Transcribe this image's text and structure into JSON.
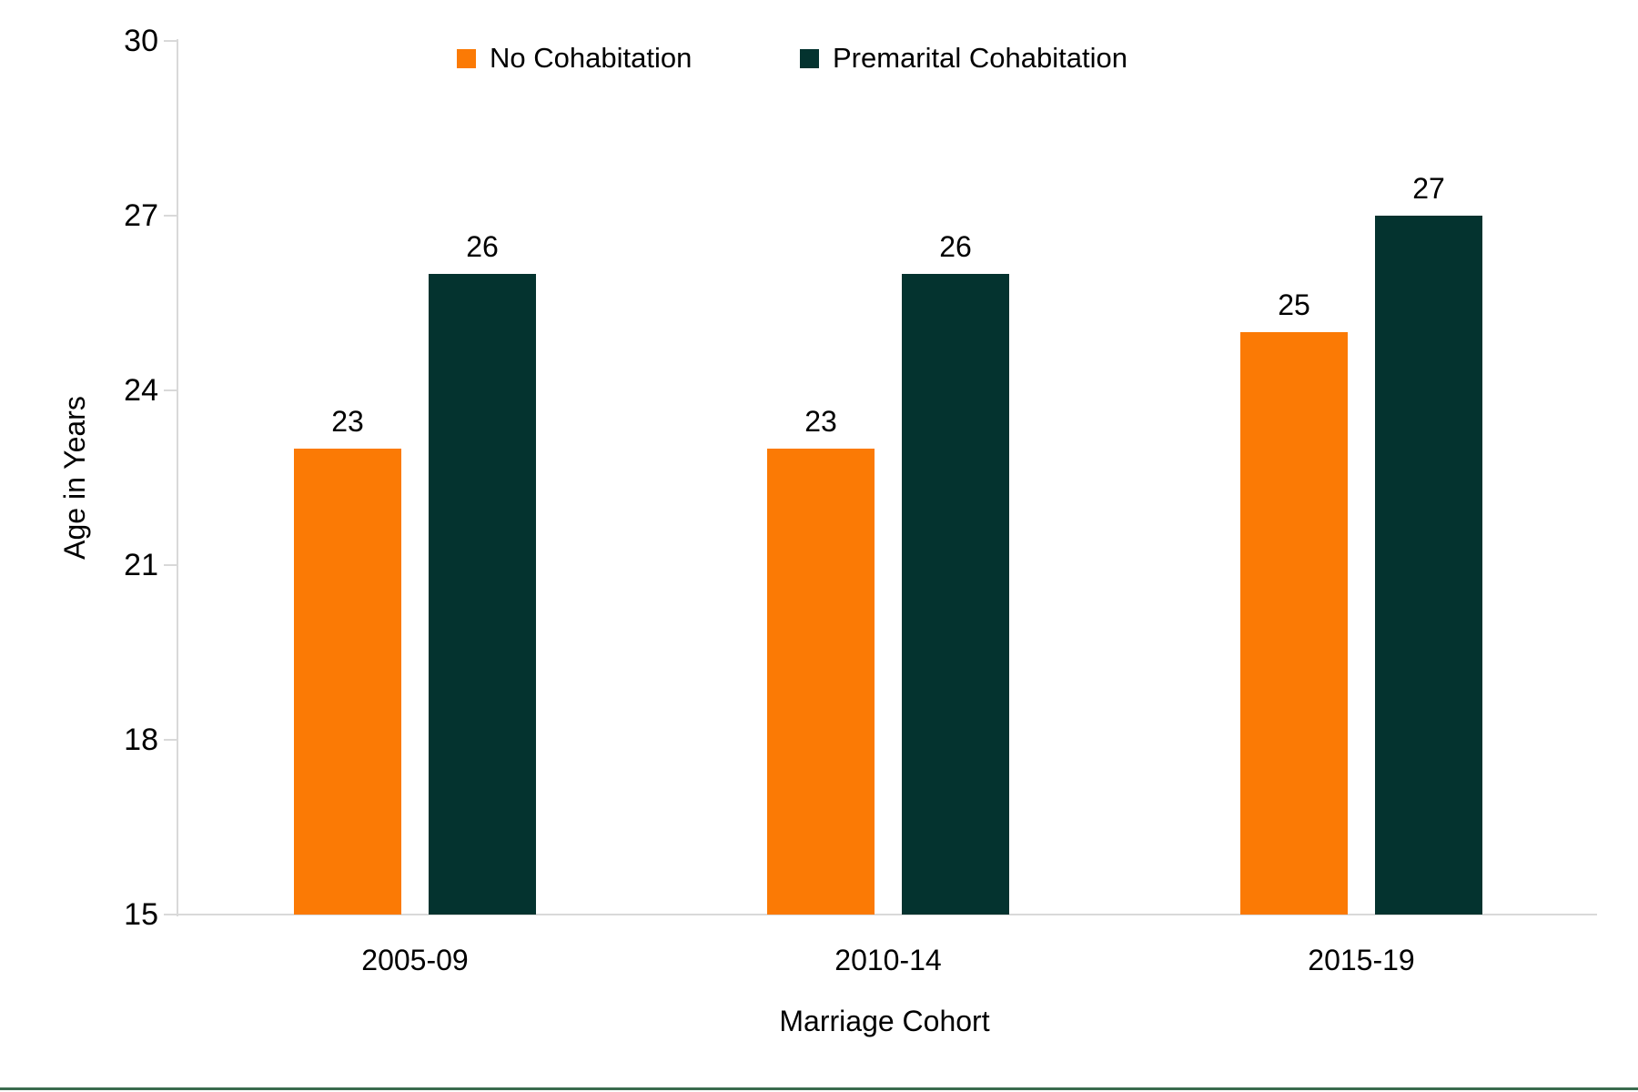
{
  "colors": {
    "series_no_cohab": "#FB7A05",
    "series_premarital": "#04332F",
    "axis_line": "#D9D9D9",
    "text": "#000000",
    "bottom_rule": "#3A6B4E"
  },
  "legend": {
    "items": [
      {
        "label": "No Cohabitation",
        "color": "#FB7A05"
      },
      {
        "label": "Premarital Cohabitation",
        "color": "#04332F"
      }
    ]
  },
  "chart_data": {
    "type": "bar",
    "title": "",
    "categories": [
      "2005-09",
      "2010-14",
      "2015-19"
    ],
    "series": [
      {
        "name": "No Cohabitation",
        "color": "#FB7A05",
        "values": [
          23,
          23,
          25
        ]
      },
      {
        "name": "Premarital Cohabitation",
        "color": "#04332F",
        "values": [
          26,
          26,
          27
        ]
      }
    ],
    "xlabel": "Marriage Cohort",
    "ylabel": "Age in Years",
    "ylim": [
      15,
      30
    ],
    "yticks": [
      15,
      18,
      21,
      24,
      27,
      30
    ],
    "bar_value_labels": [
      [
        23,
        26
      ],
      [
        23,
        26
      ],
      [
        25,
        27
      ]
    ],
    "legend_position": "top",
    "grid": false
  }
}
